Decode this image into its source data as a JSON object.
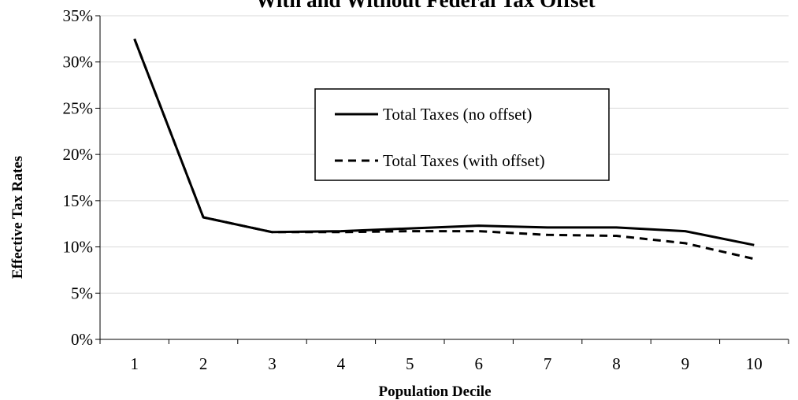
{
  "chart_data": {
    "type": "line",
    "title": "With and Without Federal Tax Offset",
    "xlabel": "Population Decile",
    "ylabel": "Effective Tax Rates",
    "categories": [
      "1",
      "2",
      "3",
      "4",
      "5",
      "6",
      "7",
      "8",
      "9",
      "10"
    ],
    "y_ticks": [
      "0%",
      "5%",
      "10%",
      "15%",
      "20%",
      "25%",
      "30%",
      "35%"
    ],
    "ylim": [
      0,
      35
    ],
    "grid": true,
    "legend_position": "center",
    "series": [
      {
        "name": "Total Taxes (no offset)",
        "style": "solid",
        "color": "#000000",
        "values": [
          32.5,
          13.2,
          11.6,
          11.7,
          12.0,
          12.3,
          12.1,
          12.1,
          11.7,
          10.2
        ]
      },
      {
        "name": "Total Taxes (with offset)",
        "style": "dashed",
        "color": "#000000",
        "values": [
          32.5,
          13.2,
          11.6,
          11.6,
          11.7,
          11.7,
          11.3,
          11.2,
          10.4,
          8.7
        ]
      }
    ]
  }
}
